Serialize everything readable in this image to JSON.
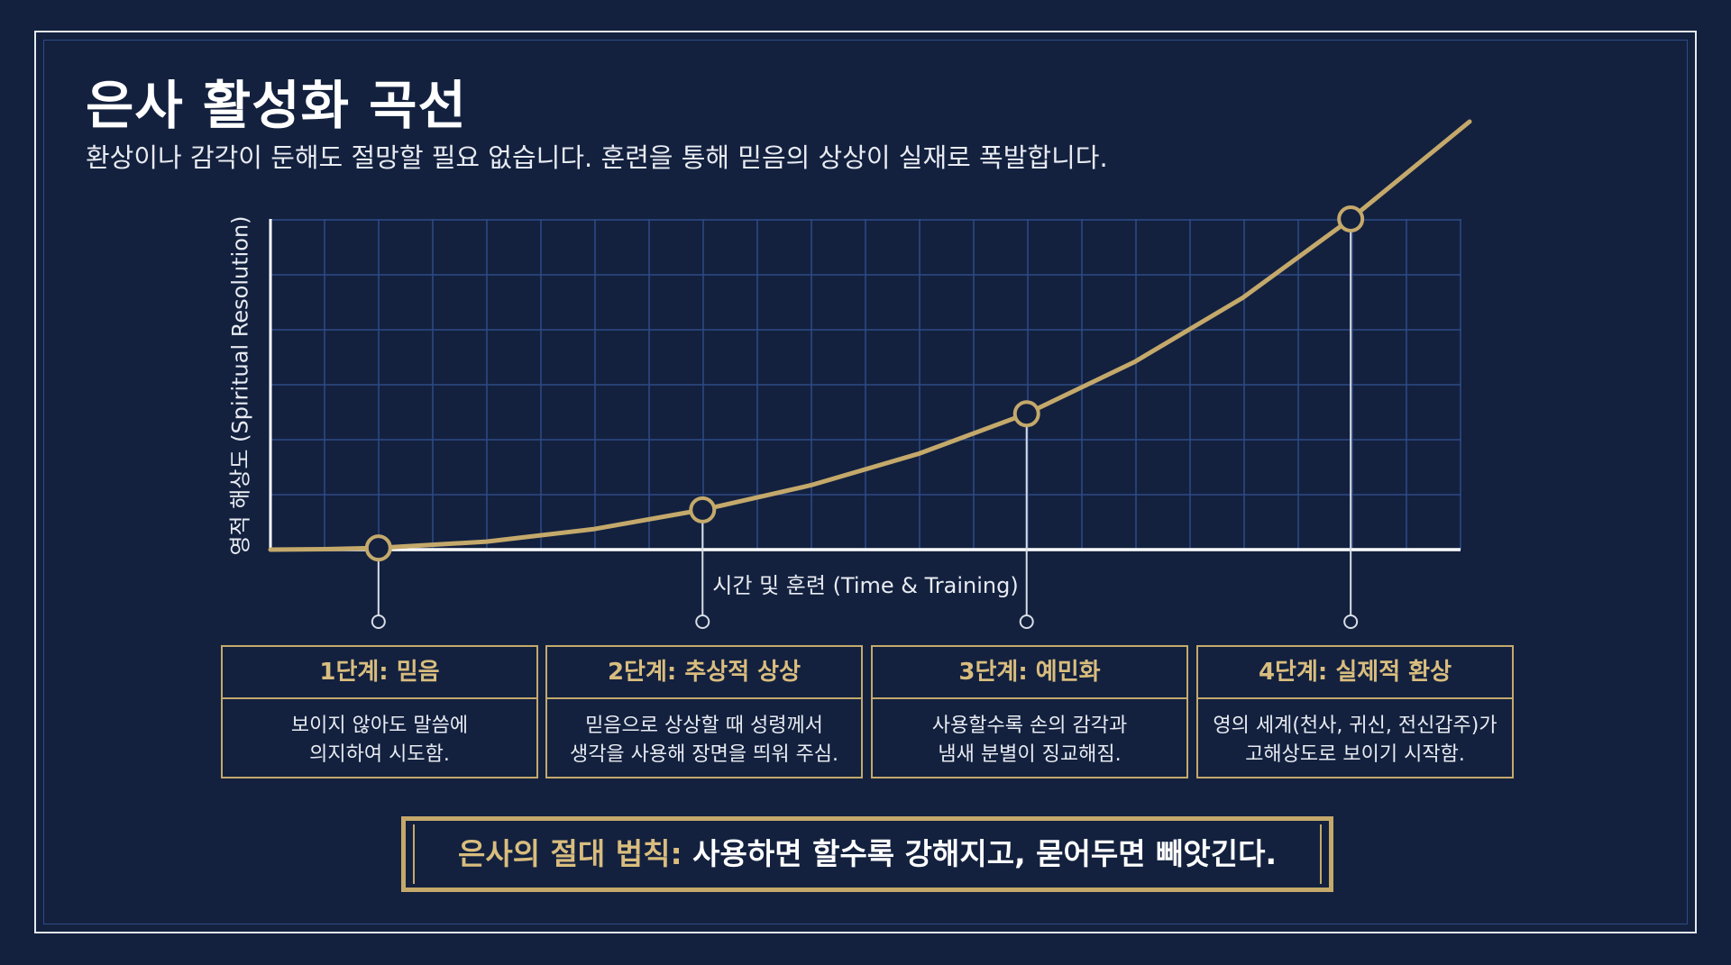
{
  "title": "은사 활성화 곡선",
  "subtitle": "환상이나 감각이 둔해도 절망할 필요 없습니다. 훈련을 통해 믿음의 상상이 실재로 폭발합니다.",
  "colors": {
    "background": "#13213f",
    "grid": "#2e4a86",
    "gold": "#c4a96b",
    "gold_text": "#d9bd7e",
    "text": "#e8ebf1"
  },
  "chart_data": {
    "type": "line",
    "xlabel": "시간 및 훈련 (Time & Training)",
    "ylabel": "영적 해상도 (Spiritual Resolution)",
    "grid": true,
    "series": [
      {
        "x": [
          0,
          0.5,
          1,
          2,
          3,
          4,
          5,
          6,
          7,
          8,
          9,
          10,
          11.1
        ],
        "values": [
          0,
          0.02,
          0.07,
          0.33,
          0.85,
          1.64,
          2.65,
          3.95,
          5.6,
          7.74,
          10.38,
          13.63,
          17.64
        ]
      }
    ],
    "milestones": [
      {
        "x": 1,
        "y": 0.07
      },
      {
        "x": 4,
        "y": 1.64
      },
      {
        "x": 7,
        "y": 5.6
      },
      {
        "x": 10,
        "y": 13.63
      }
    ]
  },
  "stages": [
    {
      "title": "1단계: 믿음",
      "line1": "보이지 않아도 말씀에",
      "line2": "의지하여 시도함."
    },
    {
      "title": "2단계: 추상적 상상",
      "line1": "믿음으로 상상할 때 성령께서",
      "line2": "생각을 사용해 장면을 띄워 주심."
    },
    {
      "title": "3단계: 예민화",
      "line1": "사용할수록 손의 감각과",
      "line2": "냄새 분별이 징교해짐."
    },
    {
      "title": "4단계: 실제적 환상",
      "line1": "영의 세계(천사, 귀신, 전신갑주)가",
      "line2": "고해상도로 보이기 시작함."
    }
  ],
  "law": {
    "label": "은사의 절대 법칙:",
    "text": " 사용하면 할수록 강해지고, 묻어두면 빼앗긴다."
  }
}
